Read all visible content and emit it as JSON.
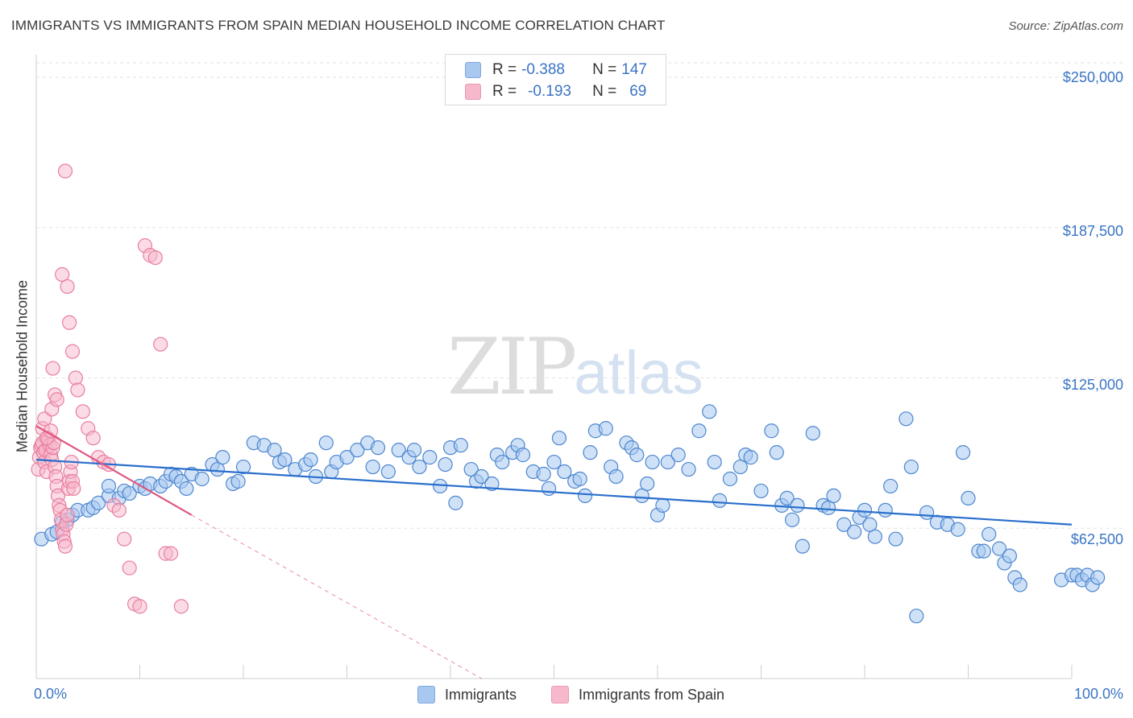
{
  "title": "IMMIGRANTS VS IMMIGRANTS FROM SPAIN MEDIAN HOUSEHOLD INCOME CORRELATION CHART",
  "source": "Source: ZipAtlas.com",
  "watermark": {
    "zip": "ZIP",
    "atlas": "atlas"
  },
  "legend": {
    "rows": [
      {
        "r_label": "R = ",
        "r_value": "-0.388",
        "n_label": "N = ",
        "n_value": "147",
        "color": "#a8c8f0"
      },
      {
        "r_label": "R = ",
        "r_value": "-0.193",
        "n_label": "N = ",
        "n_value": "69",
        "color": "#f8b8cc"
      }
    ]
  },
  "bottom_legend": [
    "Immigrants",
    "Immigrants from Spain"
  ],
  "axis": {
    "ylabel": "Median Household Income",
    "y_ticks": [
      "$250,000",
      "$187,500",
      "$125,000",
      "$62,500"
    ],
    "x_ticks": [
      "0.0%",
      "100.0%"
    ]
  },
  "colors": {
    "blue_fill": "#a8c8f0",
    "blue_stroke": "#4d86cf",
    "blue_line": "#2a6fcc",
    "pink_fill": "#f8b8cc",
    "pink_stroke": "#e87ea0",
    "pink_line": "#e0577f",
    "grid": "#e2e2e2",
    "tick_text": "#3a74c4"
  },
  "chart_data": {
    "type": "scatter",
    "xlim": [
      0,
      100
    ],
    "ylim": [
      0,
      262500
    ],
    "y_ticks": [
      62500,
      125000,
      187500,
      250000
    ],
    "grid": true,
    "legend_position": "top-center",
    "series": [
      {
        "name": "Immigrants",
        "trend": {
          "x": [
            0,
            100
          ],
          "y": [
            91000,
            64000
          ]
        },
        "points": [
          [
            0.5,
            58000
          ],
          [
            1.5,
            60000
          ],
          [
            2,
            61000
          ],
          [
            2.5,
            65000
          ],
          [
            3,
            66000
          ],
          [
            3.5,
            68000
          ],
          [
            4,
            70000
          ],
          [
            5,
            70000
          ],
          [
            5.5,
            71000
          ],
          [
            6,
            73000
          ],
          [
            7,
            76000
          ],
          [
            7,
            80000
          ],
          [
            8,
            75000
          ],
          [
            8.5,
            78000
          ],
          [
            9,
            77000
          ],
          [
            10,
            80000
          ],
          [
            10.5,
            79000
          ],
          [
            11,
            81000
          ],
          [
            12,
            80000
          ],
          [
            12.5,
            82000
          ],
          [
            13,
            85000
          ],
          [
            13.5,
            84000
          ],
          [
            14,
            82000
          ],
          [
            14.5,
            79000
          ],
          [
            15,
            85000
          ],
          [
            16,
            83000
          ],
          [
            17,
            89000
          ],
          [
            17.5,
            87000
          ],
          [
            18,
            92000
          ],
          [
            19,
            81000
          ],
          [
            19.5,
            82000
          ],
          [
            20,
            88000
          ],
          [
            21,
            98000
          ],
          [
            22,
            97000
          ],
          [
            23,
            95000
          ],
          [
            23.5,
            90000
          ],
          [
            24,
            91000
          ],
          [
            25,
            87000
          ],
          [
            26,
            89000
          ],
          [
            26.5,
            91000
          ],
          [
            27,
            84000
          ],
          [
            28,
            98000
          ],
          [
            28.5,
            86000
          ],
          [
            29,
            90000
          ],
          [
            30,
            92000
          ],
          [
            31,
            95000
          ],
          [
            32,
            98000
          ],
          [
            32.5,
            88000
          ],
          [
            33,
            96000
          ],
          [
            34,
            86000
          ],
          [
            35,
            95000
          ],
          [
            36,
            92000
          ],
          [
            36.5,
            95000
          ],
          [
            37,
            88000
          ],
          [
            38,
            92000
          ],
          [
            39,
            80000
          ],
          [
            39.5,
            89000
          ],
          [
            40,
            96000
          ],
          [
            40.5,
            73000
          ],
          [
            41,
            97000
          ],
          [
            42,
            87000
          ],
          [
            42.5,
            82000
          ],
          [
            43,
            84000
          ],
          [
            44,
            81000
          ],
          [
            44.5,
            93000
          ],
          [
            45,
            90000
          ],
          [
            46,
            94000
          ],
          [
            46.5,
            97000
          ],
          [
            47,
            93000
          ],
          [
            48,
            86000
          ],
          [
            49,
            85000
          ],
          [
            49.5,
            79000
          ],
          [
            50,
            90000
          ],
          [
            50.5,
            100000
          ],
          [
            51,
            86000
          ],
          [
            52,
            82000
          ],
          [
            52.5,
            83000
          ],
          [
            53,
            76000
          ],
          [
            53.5,
            94000
          ],
          [
            54,
            103000
          ],
          [
            55,
            104000
          ],
          [
            55.5,
            88000
          ],
          [
            56,
            84000
          ],
          [
            57,
            98000
          ],
          [
            57.5,
            96000
          ],
          [
            58,
            93000
          ],
          [
            58.5,
            76000
          ],
          [
            59,
            81000
          ],
          [
            59.5,
            90000
          ],
          [
            60,
            68000
          ],
          [
            60.5,
            72000
          ],
          [
            61,
            90000
          ],
          [
            62,
            93000
          ],
          [
            63,
            87000
          ],
          [
            64,
            103000
          ],
          [
            65,
            111000
          ],
          [
            65.5,
            90000
          ],
          [
            66,
            74000
          ],
          [
            67,
            83000
          ],
          [
            68,
            88000
          ],
          [
            68.5,
            93000
          ],
          [
            69,
            92000
          ],
          [
            70,
            78000
          ],
          [
            71,
            103000
          ],
          [
            71.5,
            94000
          ],
          [
            72,
            72000
          ],
          [
            72.5,
            75000
          ],
          [
            73,
            66000
          ],
          [
            73.5,
            72000
          ],
          [
            74,
            55000
          ],
          [
            75,
            102000
          ],
          [
            76,
            72000
          ],
          [
            76.5,
            71000
          ],
          [
            77,
            76000
          ],
          [
            78,
            64000
          ],
          [
            79,
            61000
          ],
          [
            79.5,
            67000
          ],
          [
            80,
            70000
          ],
          [
            80.5,
            64000
          ],
          [
            81,
            59000
          ],
          [
            82,
            70000
          ],
          [
            82.5,
            80000
          ],
          [
            83,
            58000
          ],
          [
            84,
            108000
          ],
          [
            84.5,
            88000
          ],
          [
            85,
            26000
          ],
          [
            86,
            69000
          ],
          [
            87,
            65000
          ],
          [
            88,
            64000
          ],
          [
            89,
            62000
          ],
          [
            89.5,
            94000
          ],
          [
            90,
            75000
          ],
          [
            91,
            53000
          ],
          [
            91.5,
            53000
          ],
          [
            92,
            60000
          ],
          [
            93,
            54000
          ],
          [
            93.5,
            48000
          ],
          [
            94,
            51000
          ],
          [
            94.5,
            42000
          ],
          [
            95,
            39000
          ],
          [
            99,
            41000
          ],
          [
            100,
            43000
          ],
          [
            100.5,
            43000
          ],
          [
            101,
            41000
          ],
          [
            101.5,
            43000
          ],
          [
            102,
            39000
          ],
          [
            102.5,
            42000
          ]
        ]
      },
      {
        "name": "Immigrants from Spain",
        "trend": {
          "x": [
            0,
            15
          ],
          "y": [
            105000,
            68000
          ]
        },
        "trend_extension": {
          "x": [
            15,
            43
          ],
          "y": [
            68000,
            0
          ]
        },
        "points": [
          [
            0.2,
            87000
          ],
          [
            0.3,
            92000
          ],
          [
            0.4,
            96000
          ],
          [
            0.5,
            97000
          ],
          [
            0.6,
            98000
          ],
          [
            0.7,
            94000
          ],
          [
            0.8,
            90000
          ],
          [
            0.9,
            95000
          ],
          [
            1.0,
            86000
          ],
          [
            1.1,
            100000
          ],
          [
            1.2,
            99000
          ],
          [
            1.3,
            97000
          ],
          [
            1.4,
            93000
          ],
          [
            1.5,
            91000
          ],
          [
            1.6,
            96000
          ],
          [
            1.7,
            98000
          ],
          [
            1.8,
            88000
          ],
          [
            1.9,
            84000
          ],
          [
            2.0,
            80000
          ],
          [
            2.1,
            76000
          ],
          [
            2.2,
            72000
          ],
          [
            2.3,
            70000
          ],
          [
            2.4,
            66000
          ],
          [
            2.5,
            62000
          ],
          [
            2.6,
            60000
          ],
          [
            2.7,
            57000
          ],
          [
            2.8,
            55000
          ],
          [
            2.9,
            64000
          ],
          [
            3.0,
            68000
          ],
          [
            3.1,
            79000
          ],
          [
            3.2,
            82000
          ],
          [
            3.3,
            86000
          ],
          [
            3.4,
            90000
          ],
          [
            3.5,
            82000
          ],
          [
            3.6,
            79000
          ],
          [
            0.6,
            104000
          ],
          [
            0.8,
            108000
          ],
          [
            1.5,
            112000
          ],
          [
            1.8,
            118000
          ],
          [
            2.0,
            116000
          ],
          [
            1.0,
            100000
          ],
          [
            1.4,
            103000
          ],
          [
            1.6,
            129000
          ],
          [
            2.5,
            168000
          ],
          [
            2.8,
            211000
          ],
          [
            3.0,
            163000
          ],
          [
            3.2,
            148000
          ],
          [
            3.5,
            136000
          ],
          [
            3.8,
            125000
          ],
          [
            4.0,
            120000
          ],
          [
            4.5,
            111000
          ],
          [
            5.0,
            104000
          ],
          [
            5.5,
            100000
          ],
          [
            6.0,
            92000
          ],
          [
            6.5,
            90000
          ],
          [
            7.0,
            89000
          ],
          [
            7.5,
            72000
          ],
          [
            8.0,
            70000
          ],
          [
            8.5,
            58000
          ],
          [
            9.0,
            46000
          ],
          [
            9.5,
            31000
          ],
          [
            10,
            30000
          ],
          [
            10.5,
            180000
          ],
          [
            11,
            176000
          ],
          [
            11.5,
            175000
          ],
          [
            12,
            139000
          ],
          [
            12.5,
            52000
          ],
          [
            13,
            52000
          ],
          [
            14,
            30000
          ]
        ]
      }
    ]
  }
}
